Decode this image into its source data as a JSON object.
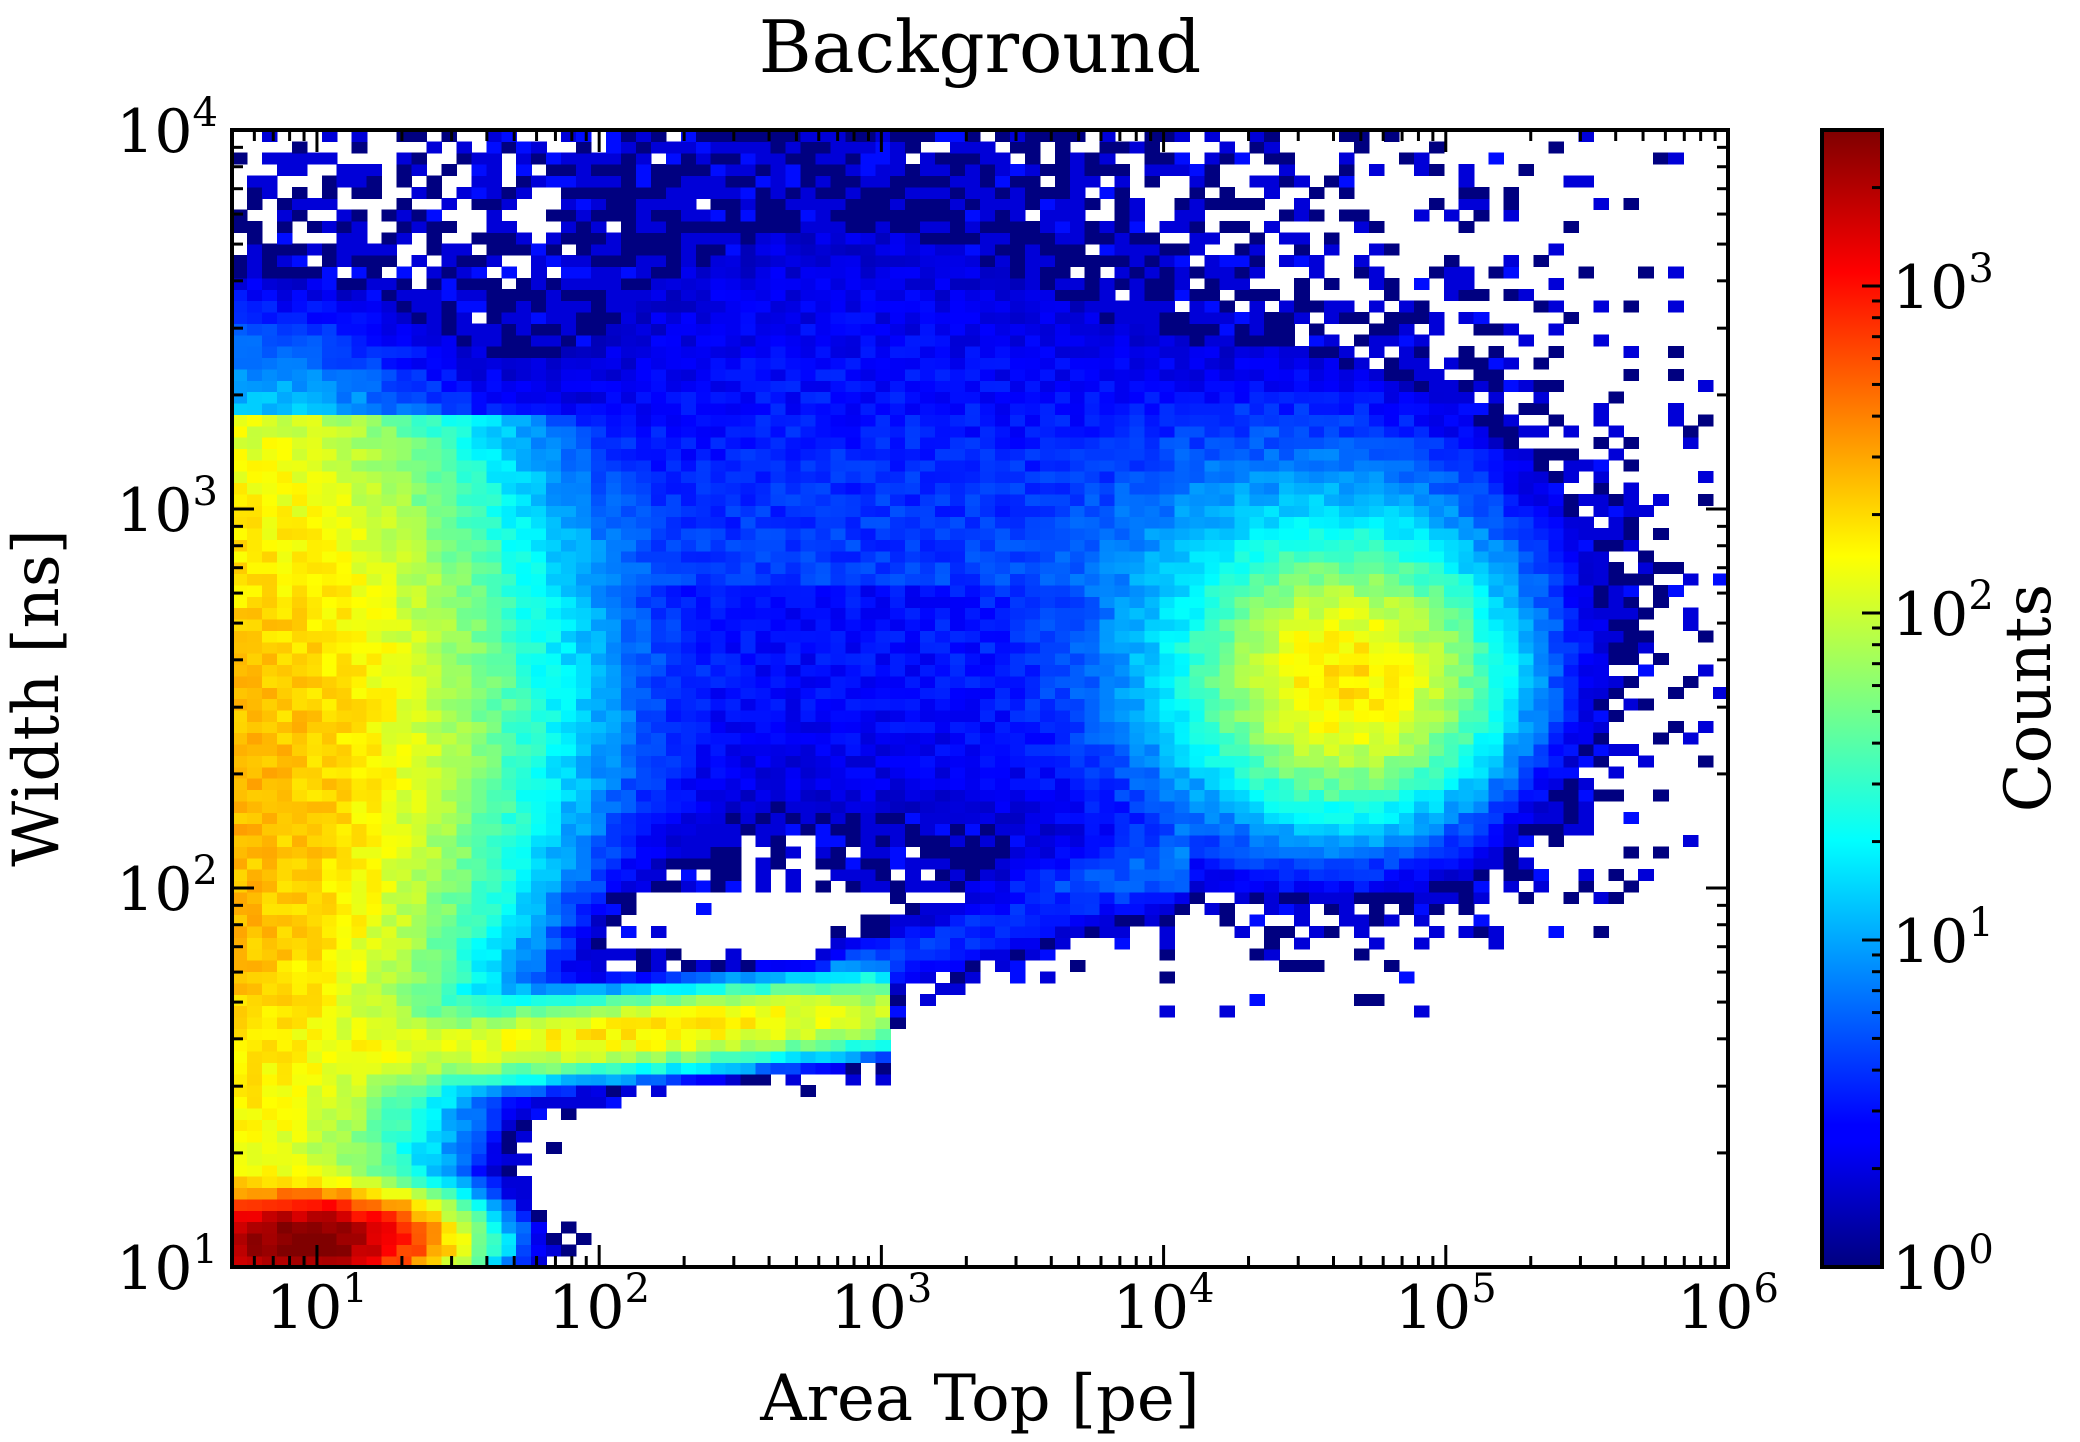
{
  "chart_data": {
    "type": "heatmap",
    "title": "Background",
    "xlabel": "Area Top [pe]",
    "ylabel": "Width [ns]",
    "x_scale": "log",
    "y_scale": "log",
    "xlim": [
      5,
      1000000
    ],
    "ylim": [
      10,
      10000
    ],
    "x_ticks": [
      {
        "value": 10,
        "base": "10",
        "exp": "1"
      },
      {
        "value": 100,
        "base": "10",
        "exp": "2"
      },
      {
        "value": 1000,
        "base": "10",
        "exp": "3"
      },
      {
        "value": 10000,
        "base": "10",
        "exp": "4"
      },
      {
        "value": 100000,
        "base": "10",
        "exp": "5"
      },
      {
        "value": 1000000,
        "base": "10",
        "exp": "6"
      }
    ],
    "y_ticks": [
      {
        "value": 10,
        "base": "10",
        "exp": "1"
      },
      {
        "value": 100,
        "base": "10",
        "exp": "2"
      },
      {
        "value": 1000,
        "base": "10",
        "exp": "3"
      },
      {
        "value": 10000,
        "base": "10",
        "exp": "4"
      }
    ],
    "colorbar": {
      "label": "Counts",
      "scale": "log",
      "range": [
        1,
        3000
      ],
      "colormap": "jet",
      "ticks": [
        {
          "value": 1,
          "base": "10",
          "exp": "0"
        },
        {
          "value": 10,
          "base": "10",
          "exp": "1"
        },
        {
          "value": 100,
          "base": "10",
          "exp": "2"
        },
        {
          "value": 1000,
          "base": "10",
          "exp": "3"
        }
      ]
    },
    "regions": [
      {
        "name": "low-area band",
        "x_range": [
          5,
          30
        ],
        "y_range": [
          10,
          1500
        ],
        "peak_counts": 200
      },
      {
        "name": "low-area hot spot",
        "x_range": [
          5,
          18
        ],
        "y_range": [
          10,
          13
        ],
        "peak_counts": 3000
      },
      {
        "name": "horizontal streak",
        "x_range": [
          15,
          1000
        ],
        "y_range": [
          33,
          45
        ],
        "peak_counts": 150
      },
      {
        "name": "upper spread",
        "x_range": [
          15,
          3000
        ],
        "y_range": [
          100,
          10000
        ],
        "peak_counts": 5
      },
      {
        "name": "high-area cluster",
        "x_range": [
          20000,
          200000
        ],
        "y_range": [
          200,
          700
        ],
        "peak_counts": 150
      }
    ],
    "colors": {
      "colormap_low": "#00007f",
      "colormap_high": "#7f0000",
      "axes": "#000000"
    }
  }
}
